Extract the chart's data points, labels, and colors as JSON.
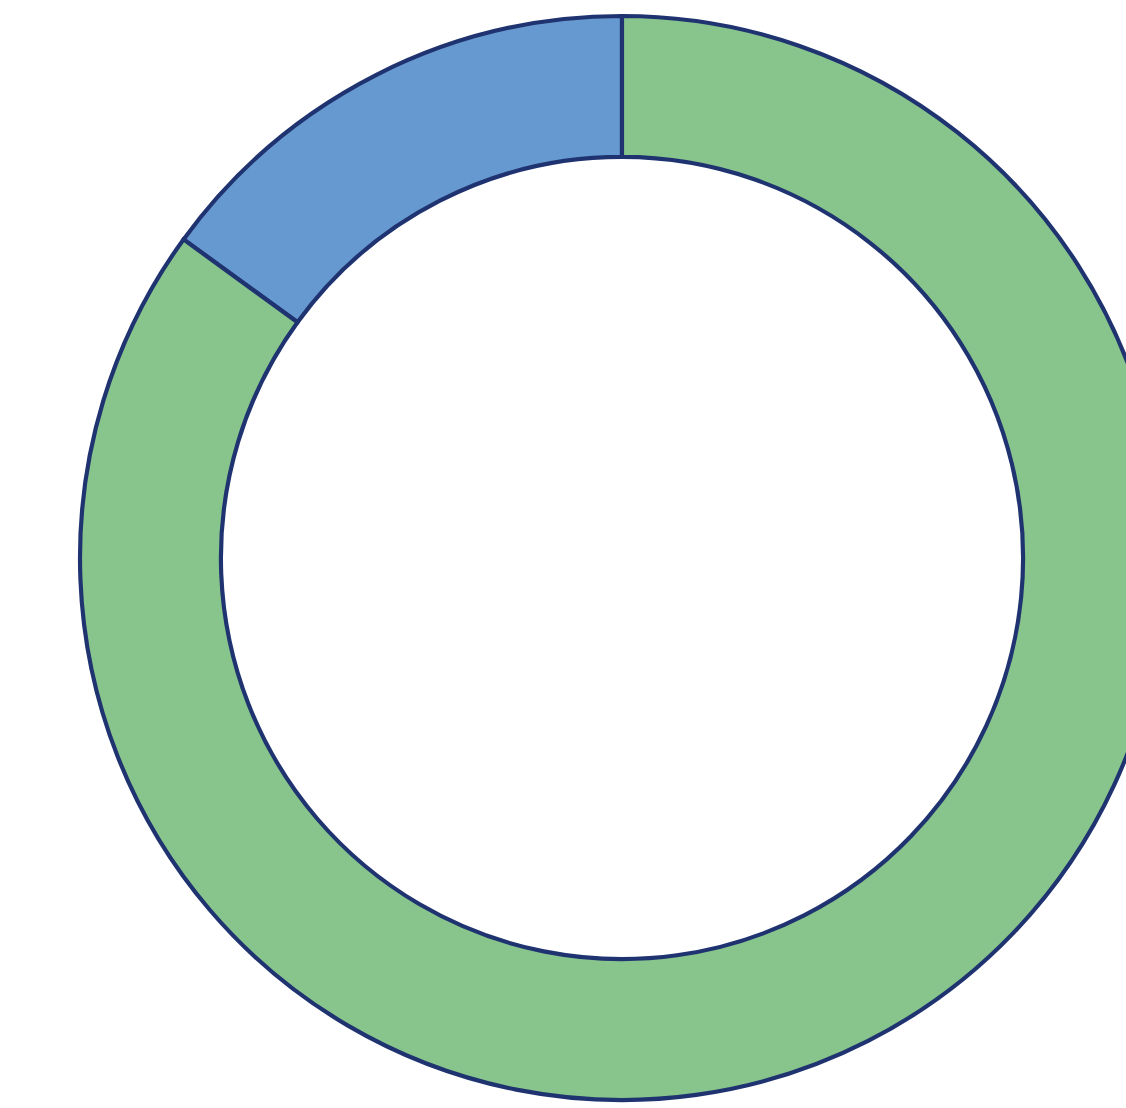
{
  "chart_data": {
    "type": "donut",
    "categories": [
      null,
      null
    ],
    "values": [
      15,
      85
    ],
    "colors": [
      "#6699d0",
      "#88c58c"
    ]
  }
}
